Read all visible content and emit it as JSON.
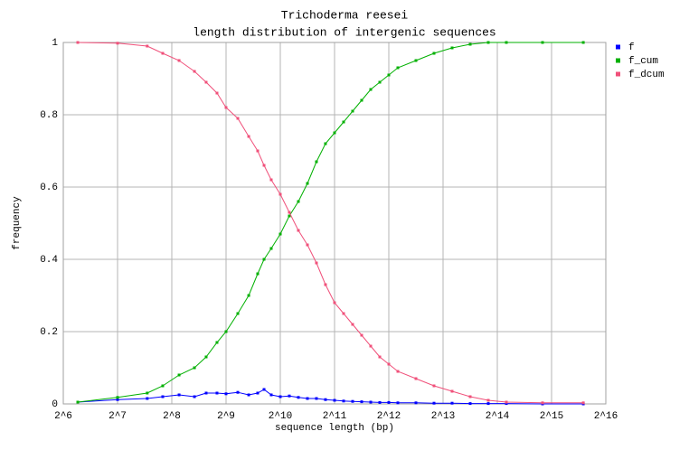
{
  "chart_data": {
    "type": "line",
    "title": "Trichoderma reesei",
    "subtitle": "length distribution of intergenic sequences",
    "x_label": "sequence length (bp)",
    "y_label": "frequency",
    "x_scale": "log2",
    "grid": true,
    "legend": "right",
    "xlim": [
      64,
      65536
    ],
    "xticks": [
      {
        "value": 64,
        "label": "2^6"
      },
      {
        "value": 128,
        "label": "2^7"
      },
      {
        "value": 256,
        "label": "2^8"
      },
      {
        "value": 512,
        "label": "2^9"
      },
      {
        "value": 1024,
        "label": "2^10"
      },
      {
        "value": 2048,
        "label": "2^11"
      },
      {
        "value": 4096,
        "label": "2^12"
      },
      {
        "value": 8192,
        "label": "2^13"
      },
      {
        "value": 16384,
        "label": "2^14"
      },
      {
        "value": 32768,
        "label": "2^15"
      },
      {
        "value": 65536,
        "label": "2^16"
      }
    ],
    "ylim": [
      0,
      1
    ],
    "yticks": [
      0,
      0.2,
      0.4,
      0.6,
      0.8,
      1
    ],
    "x": [
      77,
      128,
      187,
      228,
      281,
      342,
      397,
      456,
      512,
      595,
      684,
      767,
      832,
      912,
      1024,
      1149,
      1290,
      1448,
      1625,
      1824,
      2048,
      2299,
      2580,
      2896,
      3251,
      3649,
      4096,
      4598,
      5793,
      7298,
      9195,
      11585,
      14596,
      18390,
      29193,
      49152
    ],
    "series": [
      {
        "name": "f",
        "color": "#0000ff",
        "values": [
          0.005,
          0.012,
          0.015,
          0.02,
          0.025,
          0.02,
          0.03,
          0.03,
          0.028,
          0.032,
          0.025,
          0.03,
          0.04,
          0.025,
          0.02,
          0.022,
          0.018,
          0.015,
          0.015,
          0.012,
          0.01,
          0.008,
          0.007,
          0.006,
          0.005,
          0.004,
          0.004,
          0.003,
          0.003,
          0.002,
          0.002,
          0.001,
          0.001,
          0.001,
          0,
          0
        ]
      },
      {
        "name": "f_cum",
        "color": "#00b000",
        "values": [
          0.005,
          0.018,
          0.03,
          0.05,
          0.08,
          0.1,
          0.13,
          0.17,
          0.2,
          0.25,
          0.3,
          0.36,
          0.4,
          0.43,
          0.47,
          0.52,
          0.56,
          0.61,
          0.67,
          0.72,
          0.75,
          0.78,
          0.81,
          0.84,
          0.87,
          0.89,
          0.91,
          0.93,
          0.95,
          0.97,
          0.985,
          0.995,
          1,
          1,
          1,
          1
        ]
      },
      {
        "name": "f_dcum",
        "color": "#f0507a",
        "values": [
          1,
          0.998,
          0.99,
          0.97,
          0.95,
          0.92,
          0.89,
          0.86,
          0.82,
          0.79,
          0.74,
          0.7,
          0.66,
          0.62,
          0.58,
          0.53,
          0.48,
          0.44,
          0.39,
          0.33,
          0.28,
          0.25,
          0.22,
          0.19,
          0.16,
          0.13,
          0.11,
          0.09,
          0.07,
          0.05,
          0.035,
          0.02,
          0.01,
          0.005,
          0.003,
          0.003
        ]
      }
    ]
  }
}
